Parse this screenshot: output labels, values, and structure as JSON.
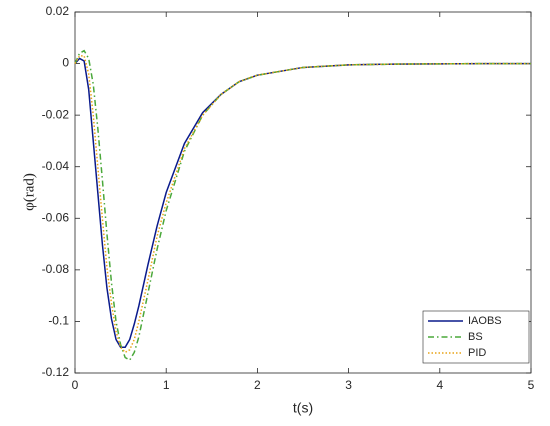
{
  "chart_data": {
    "type": "line",
    "x_label": "t(s)",
    "y_label": "φ(rad)",
    "x": [
      0,
      0.05,
      0.1,
      0.15,
      0.2,
      0.25,
      0.3,
      0.35,
      0.4,
      0.45,
      0.5,
      0.55,
      0.6,
      0.65,
      0.7,
      0.8,
      0.9,
      1.0,
      1.2,
      1.4,
      1.6,
      1.8,
      2.0,
      2.5,
      3,
      3.5,
      4,
      4.5,
      5
    ],
    "series": [
      {
        "name": "IAOBS",
        "color": "#0a1a8c",
        "style": "solid",
        "values": [
          0,
          0.002,
          0.001,
          -0.01,
          -0.03,
          -0.05,
          -0.07,
          -0.087,
          -0.099,
          -0.107,
          -0.11,
          -0.11,
          -0.107,
          -0.101,
          -0.094,
          -0.078,
          -0.063,
          -0.05,
          -0.031,
          -0.019,
          -0.012,
          -0.007,
          -0.0045,
          -0.0015,
          -0.0005,
          -0.0002,
          -0.0001,
          0,
          0
        ]
      },
      {
        "name": "BS",
        "color": "#4aa83a",
        "style": "dashdot",
        "values": [
          0,
          0.004,
          0.005,
          0.002,
          -0.008,
          -0.025,
          -0.045,
          -0.066,
          -0.085,
          -0.1,
          -0.109,
          -0.114,
          -0.115,
          -0.112,
          -0.106,
          -0.089,
          -0.072,
          -0.057,
          -0.034,
          -0.02,
          -0.012,
          -0.007,
          -0.0045,
          -0.0015,
          -0.0005,
          -0.0002,
          -0.0001,
          0,
          0
        ]
      },
      {
        "name": "PID",
        "color": "#e8a317",
        "style": "dotted",
        "values": [
          0,
          0.003,
          0.003,
          -0.004,
          -0.02,
          -0.04,
          -0.06,
          -0.079,
          -0.093,
          -0.104,
          -0.11,
          -0.112,
          -0.111,
          -0.107,
          -0.1,
          -0.084,
          -0.067,
          -0.054,
          -0.033,
          -0.02,
          -0.012,
          -0.007,
          -0.0045,
          -0.0015,
          -0.0005,
          -0.0002,
          -0.0001,
          0,
          0
        ]
      }
    ],
    "xlim": [
      0,
      5
    ],
    "xticks": [
      0,
      1,
      2,
      3,
      4,
      5
    ],
    "ylim": [
      -0.12,
      0.02
    ],
    "yticks": [
      0.02,
      0,
      -0.02,
      -0.04,
      -0.06,
      -0.08,
      -0.1,
      -0.12
    ],
    "legend": "lower right"
  }
}
